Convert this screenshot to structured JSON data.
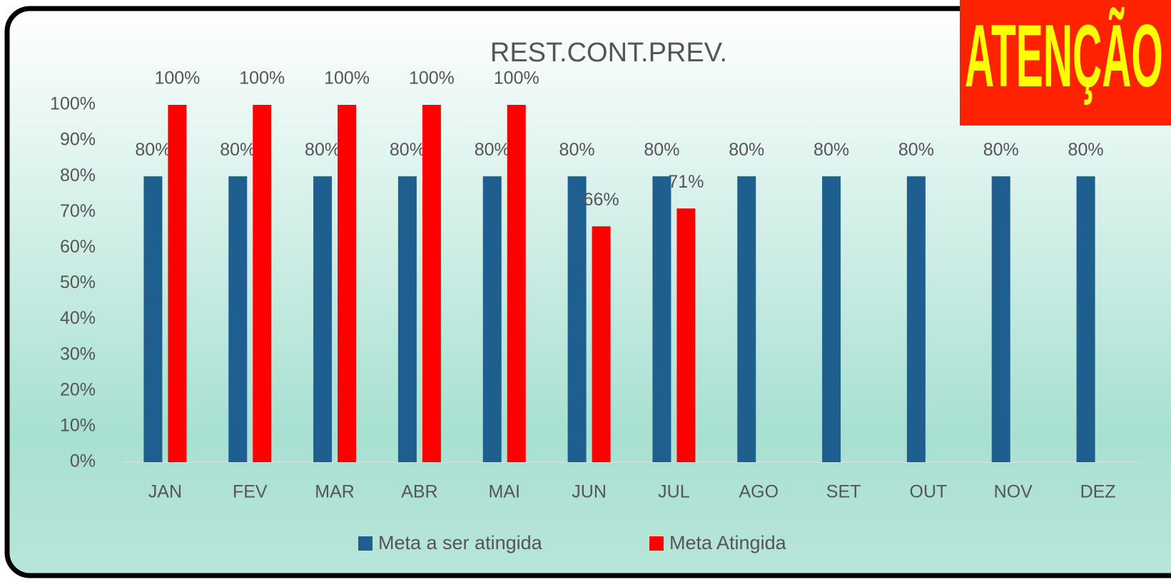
{
  "chart_data": {
    "type": "bar",
    "title": "REST.CONT.PREV.",
    "categories": [
      "JAN",
      "FEV",
      "MAR",
      "ABR",
      "MAI",
      "JUN",
      "JUL",
      "AGO",
      "SET",
      "OUT",
      "NOV",
      "DEZ"
    ],
    "series": [
      {
        "name": "Meta a ser atingida",
        "color": "#1f5f8f",
        "values": [
          80,
          80,
          80,
          80,
          80,
          80,
          80,
          80,
          80,
          80,
          80,
          80
        ],
        "value_labels": [
          "80%",
          "80%",
          "80%",
          "80%",
          "80%",
          "80%",
          "80%",
          "80%",
          "80%",
          "80%",
          "80%",
          "80%"
        ]
      },
      {
        "name": "Meta Atingida",
        "color": "#ff0000",
        "values": [
          100,
          100,
          100,
          100,
          100,
          66,
          71,
          null,
          null,
          null,
          null,
          null
        ],
        "value_labels": [
          "100%",
          "100%",
          "100%",
          "100%",
          "100%",
          "66%",
          "71%",
          null,
          null,
          null,
          null,
          null
        ]
      }
    ],
    "ylim": [
      0,
      100
    ],
    "yticks": [
      {
        "value": 0,
        "label": "0%"
      },
      {
        "value": 10,
        "label": "10%"
      },
      {
        "value": 20,
        "label": "20%"
      },
      {
        "value": 30,
        "label": "30%"
      },
      {
        "value": 40,
        "label": "40%"
      },
      {
        "value": 50,
        "label": "50%"
      },
      {
        "value": 60,
        "label": "60%"
      },
      {
        "value": 70,
        "label": "70%"
      },
      {
        "value": 80,
        "label": "80%"
      },
      {
        "value": 90,
        "label": "90%"
      },
      {
        "value": 100,
        "label": "100%"
      }
    ],
    "legend": "bottom",
    "annotations": [
      "ATENÇÃO"
    ]
  }
}
